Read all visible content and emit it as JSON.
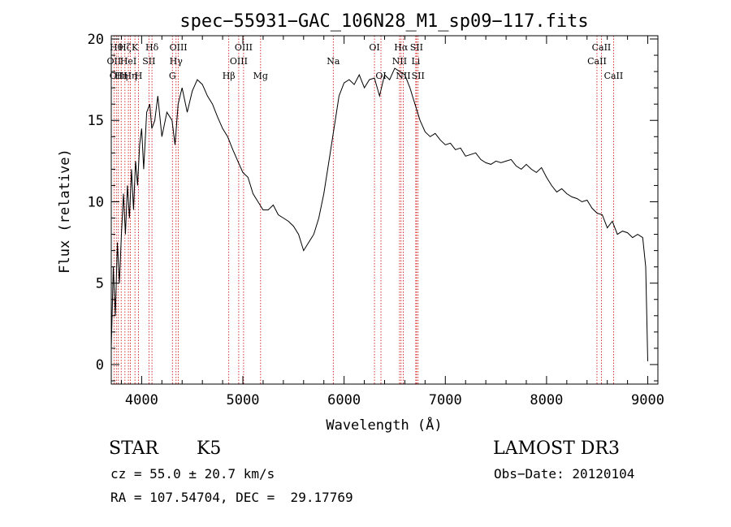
{
  "chart_data": {
    "type": "line",
    "title": "spec−55931−GAC_106N28_M1_sp09−117.fits",
    "xlabel": "Wavelength (Å)",
    "ylabel": "Flux (relative)",
    "xlim": [
      3700,
      9100
    ],
    "ylim": [
      -1.2,
      20.2
    ],
    "x_ticks": [
      4000,
      5000,
      6000,
      7000,
      8000,
      9000
    ],
    "y_ticks": [
      0,
      5,
      10,
      15,
      20
    ],
    "grid": false,
    "series": [
      {
        "color": "#000000",
        "x": [
          3700,
          3720,
          3740,
          3760,
          3780,
          3800,
          3820,
          3840,
          3860,
          3880,
          3900,
          3920,
          3940,
          3960,
          3980,
          4000,
          4020,
          4050,
          4080,
          4100,
          4130,
          4160,
          4200,
          4250,
          4300,
          4330,
          4360,
          4400,
          4450,
          4500,
          4550,
          4600,
          4650,
          4700,
          4750,
          4800,
          4850,
          4900,
          4950,
          5000,
          5050,
          5100,
          5150,
          5200,
          5250,
          5300,
          5350,
          5400,
          5450,
          5500,
          5550,
          5600,
          5650,
          5700,
          5750,
          5800,
          5850,
          5900,
          5950,
          6000,
          6050,
          6100,
          6150,
          6200,
          6250,
          6300,
          6350,
          6400,
          6450,
          6500,
          6550,
          6600,
          6650,
          6700,
          6750,
          6800,
          6850,
          6900,
          6950,
          7000,
          7050,
          7100,
          7150,
          7200,
          7250,
          7300,
          7350,
          7400,
          7450,
          7500,
          7550,
          7600,
          7650,
          7700,
          7750,
          7800,
          7850,
          7900,
          7950,
          8000,
          8050,
          8100,
          8150,
          8200,
          8250,
          8300,
          8350,
          8400,
          8450,
          8500,
          8550,
          8600,
          8650,
          8700,
          8750,
          8800,
          8850,
          8900,
          8950,
          8980,
          9000
        ],
        "y": [
          1.0,
          6.0,
          3.0,
          7.5,
          5.0,
          8.0,
          10.5,
          8.0,
          11.0,
          9.0,
          12.0,
          9.5,
          12.5,
          11.0,
          13.5,
          14.5,
          12.0,
          15.5,
          16.0,
          14.5,
          15.0,
          16.5,
          14.0,
          15.5,
          15.0,
          13.5,
          16.0,
          17.0,
          15.5,
          16.8,
          17.5,
          17.2,
          16.5,
          16.0,
          15.2,
          14.5,
          14.0,
          13.2,
          12.5,
          11.8,
          11.5,
          10.5,
          10.0,
          9.5,
          9.5,
          9.8,
          9.2,
          9.0,
          8.8,
          8.5,
          8.0,
          7.0,
          7.5,
          8.0,
          9.0,
          10.5,
          12.5,
          14.5,
          16.5,
          17.3,
          17.5,
          17.2,
          17.8,
          17.0,
          17.5,
          17.6,
          16.5,
          17.8,
          17.5,
          18.2,
          18.0,
          17.8,
          17.0,
          16.0,
          15.0,
          14.3,
          14.0,
          14.2,
          13.8,
          13.5,
          13.6,
          13.2,
          13.3,
          12.8,
          12.9,
          13.0,
          12.6,
          12.4,
          12.3,
          12.5,
          12.4,
          12.5,
          12.6,
          12.2,
          12.0,
          12.3,
          12.0,
          11.8,
          12.1,
          11.5,
          11.0,
          10.6,
          10.8,
          10.5,
          10.3,
          10.2,
          10.0,
          10.1,
          9.6,
          9.3,
          9.2,
          8.4,
          8.8,
          8.0,
          8.2,
          8.1,
          7.8,
          8.0,
          7.8,
          6.0,
          0.2
        ]
      }
    ],
    "line_markers": [
      {
        "wavelength": 3727,
        "label": "OII",
        "row": 1
      },
      {
        "wavelength": 3750,
        "label": "Hθ",
        "row": 0
      },
      {
        "wavelength": 3770,
        "label": "OIII",
        "row": 2
      },
      {
        "wavelength": 3798,
        "label": "Hη",
        "row": 2
      },
      {
        "wavelength": 3835,
        "label": "Hζ",
        "row": 0
      },
      {
        "wavelength": 3869,
        "label": "HeI",
        "row": 1
      },
      {
        "wavelength": 3889,
        "label": "Hη",
        "row": 2
      },
      {
        "wavelength": 3934,
        "label": "K",
        "row": 0
      },
      {
        "wavelength": 3969,
        "label": "H",
        "row": 2
      },
      {
        "wavelength": 4072,
        "label": "SII",
        "row": 1
      },
      {
        "wavelength": 4102,
        "label": "Hδ",
        "row": 0
      },
      {
        "wavelength": 4304,
        "label": "G",
        "row": 2
      },
      {
        "wavelength": 4340,
        "label": "Hγ",
        "row": 1
      },
      {
        "wavelength": 4363,
        "label": "OIII",
        "row": 0
      },
      {
        "wavelength": 4861,
        "label": "Hβ",
        "row": 2
      },
      {
        "wavelength": 4959,
        "label": "OIII",
        "row": 1
      },
      {
        "wavelength": 5007,
        "label": "OIII",
        "row": 0
      },
      {
        "wavelength": 5175,
        "label": "Mg",
        "row": 2
      },
      {
        "wavelength": 5893,
        "label": "Na",
        "row": 1
      },
      {
        "wavelength": 6300,
        "label": "OI",
        "row": 0
      },
      {
        "wavelength": 6364,
        "label": "OI",
        "row": 2
      },
      {
        "wavelength": 6548,
        "label": "NII",
        "row": 1
      },
      {
        "wavelength": 6563,
        "label": "Hα",
        "row": 0
      },
      {
        "wavelength": 6584,
        "label": "NII",
        "row": 2
      },
      {
        "wavelength": 6708,
        "label": "Li",
        "row": 1
      },
      {
        "wavelength": 6716,
        "label": "SII",
        "row": 0
      },
      {
        "wavelength": 6731,
        "label": "SII",
        "row": 2
      },
      {
        "wavelength": 8498,
        "label": "CaII",
        "row": 1
      },
      {
        "wavelength": 8542,
        "label": "CaII",
        "row": 0
      },
      {
        "wavelength": 8662,
        "label": "CaII",
        "row": 2
      }
    ],
    "marker_color": "#cc0000"
  },
  "info": {
    "object_class": "STAR",
    "subclass": "K5",
    "survey": "LAMOST DR3",
    "velocity": "cz = 55.0 ± 20.7 km/s",
    "obs_date": "Obs−Date: 20120104",
    "coordinates": "RA = 107.54704, DEC =  29.17769"
  }
}
